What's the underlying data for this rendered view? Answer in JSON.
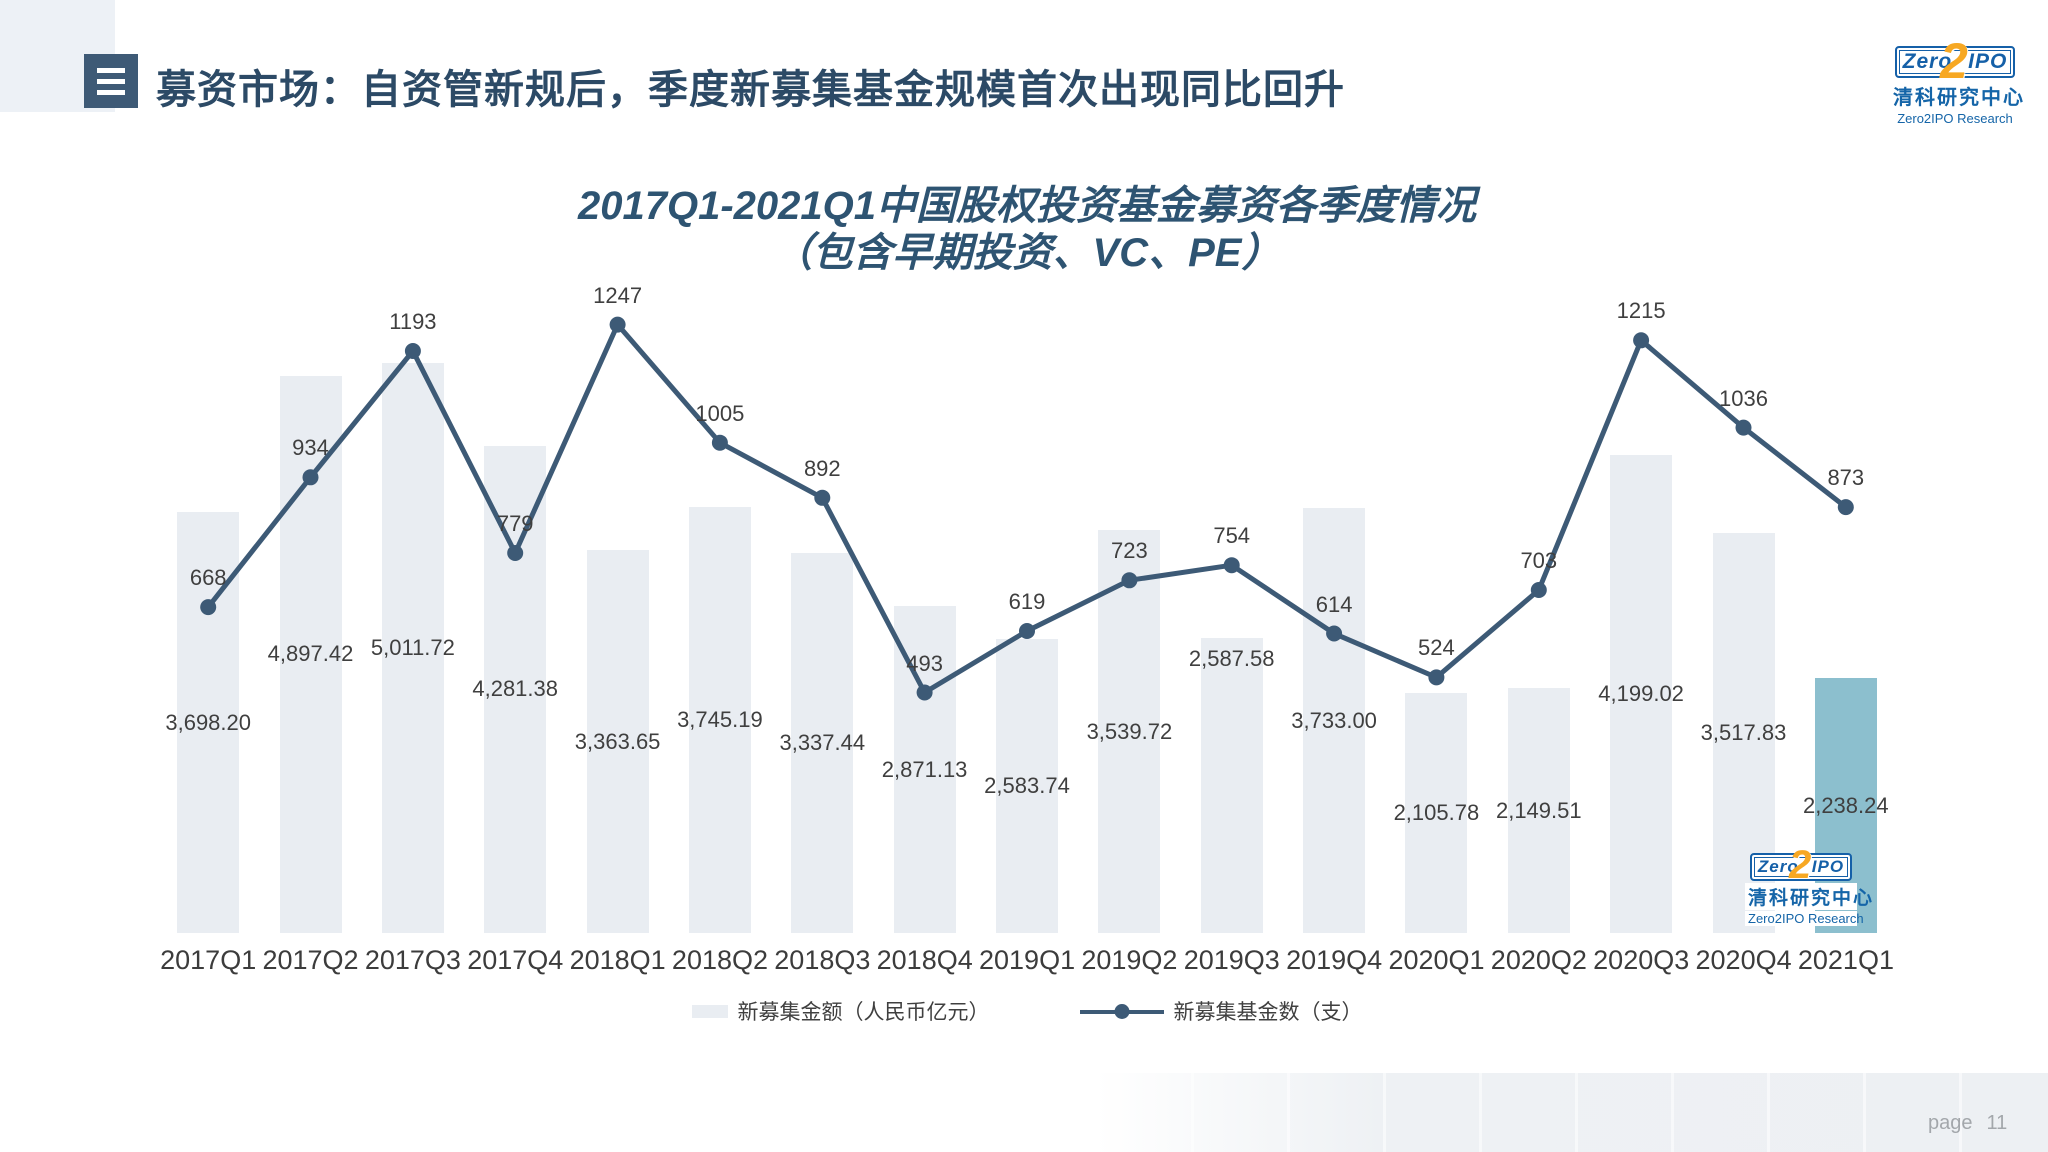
{
  "header": {
    "title": "募资市场：自资管新规后，季度新募集基金规模首次出现同比回升",
    "icon": "list-icon"
  },
  "logo": {
    "zero": "Zero",
    "two": "2",
    "ipo": "IPO",
    "cn_name": "清科研究中心",
    "en_name": "Zero2IPO Research",
    "blue": "#1560a8",
    "orange": "#f7a823"
  },
  "chart_data": {
    "type": "bar",
    "combo": "bar+line",
    "title": "2017Q1-2021Q1中国股权投资基金募资各季度情况",
    "subtitle": "（包含早期投资、VC、PE）",
    "categories": [
      "2017Q1",
      "2017Q2",
      "2017Q3",
      "2017Q4",
      "2018Q1",
      "2018Q2",
      "2018Q3",
      "2018Q4",
      "2019Q1",
      "2019Q2",
      "2019Q3",
      "2019Q4",
      "2020Q1",
      "2020Q2",
      "2020Q3",
      "2020Q4",
      "2021Q1"
    ],
    "series": [
      {
        "name": "新募集金额（人民币亿元）",
        "type": "bar",
        "values": [
          3698.2,
          4897.42,
          5011.72,
          4281.38,
          3363.65,
          3745.19,
          3337.44,
          2871.13,
          2583.74,
          3539.72,
          2587.58,
          3733.0,
          2105.78,
          2149.51,
          4199.02,
          3517.83,
          2238.24
        ],
        "labels": [
          "3,698.20",
          "4,897.42",
          "5,011.72",
          "4,281.38",
          "3,363.65",
          "3,745.19",
          "3,337.44",
          "2,871.13",
          "2,583.74",
          "3,539.72",
          "2,587.58",
          "3,733.00",
          "2,105.78",
          "2,149.51",
          "4,199.02",
          "3,517.83",
          "2,238.24"
        ]
      },
      {
        "name": "新募集基金数（支）",
        "type": "line",
        "values": [
          668,
          934,
          1193,
          779,
          1247,
          1005,
          892,
          493,
          619,
          723,
          754,
          614,
          524,
          703,
          1215,
          1036,
          873
        ],
        "labels": [
          "668",
          "934",
          "1193",
          "779",
          "1247",
          "1005",
          "892",
          "493",
          "619",
          "723",
          "754",
          "614",
          "524",
          "703",
          "1215",
          "1036",
          "873"
        ]
      }
    ],
    "bar_axis_max": 6000,
    "line_axis_max": 1400,
    "bar_color": "#e9edf2",
    "bar_highlight_color": "#8cbfce",
    "highlight_index": 16,
    "line_color": "#3d5a76",
    "grid": "off",
    "axis_lines": "hidden",
    "legend_position": "bottom"
  },
  "footer": {
    "page_label": "page",
    "page_number": "11"
  }
}
